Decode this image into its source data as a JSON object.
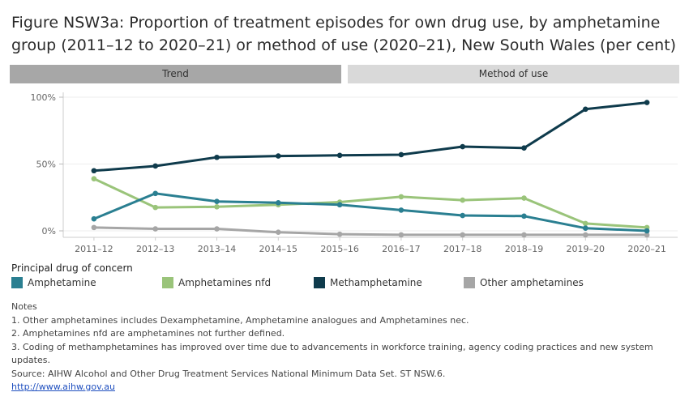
{
  "title": "Figure NSW3a: Proportion of treatment episodes for own drug use, by amphetamine group (2011–12 to 2020–21) or method of use (2020–21), New South Wales (per cent)",
  "tabs": {
    "trend": "Trend",
    "method": "Method of use"
  },
  "legend": {
    "title": "Principal drug of concern",
    "items": [
      {
        "label": "Amphetamine",
        "color": "#2a7f91"
      },
      {
        "label": "Amphetamines nfd",
        "color": "#9ac47a"
      },
      {
        "label": "Methamphetamine",
        "color": "#0f3b4c"
      },
      {
        "label": "Other amphetamines",
        "color": "#a6a6a6"
      }
    ]
  },
  "notes": {
    "heading": "Notes",
    "lines": [
      "1. Other amphetamines includes Dexamphetamine, Amphetamine analogues and Amphetamines nec.",
      "2. Amphetamines nfd are amphetamines not further defined.",
      "3. Coding of methamphetamines has improved over time due to advancements in workforce training, agency coding practices and new system updates."
    ],
    "source": "Source: AIHW Alcohol and Other Drug Treatment Services National Minimum Data Set. ST NSW.6.",
    "link": "http://www.aihw.gov.au"
  },
  "chart_data": {
    "type": "line",
    "categories": [
      "2011–12",
      "2012–13",
      "2013–14",
      "2014–15",
      "2015–16",
      "2016–17",
      "2017–18",
      "2018–19",
      "2019–20",
      "2020–21"
    ],
    "yticks": [
      "0%",
      "50%",
      "100%"
    ],
    "ylim": [
      0,
      100
    ],
    "grid": true,
    "series": [
      {
        "name": "Amphetamine",
        "color": "#2a7f91",
        "values": [
          9,
          28,
          22,
          21,
          19.5,
          15.5,
          11.5,
          11,
          2,
          0
        ]
      },
      {
        "name": "Amphetamines nfd",
        "color": "#9ac47a",
        "values": [
          39,
          17.5,
          18,
          19.5,
          21.5,
          25.5,
          23,
          24.5,
          5.5,
          2.5
        ]
      },
      {
        "name": "Methamphetamine",
        "color": "#0f3b4c",
        "values": [
          45,
          48.5,
          55,
          56,
          56.5,
          57,
          63,
          62,
          91,
          96
        ]
      },
      {
        "name": "Other amphetamines",
        "color": "#a6a6a6",
        "values": [
          2.5,
          1.5,
          1.5,
          -1,
          -2.5,
          -3,
          -3,
          -3,
          -3,
          -3
        ]
      }
    ]
  }
}
